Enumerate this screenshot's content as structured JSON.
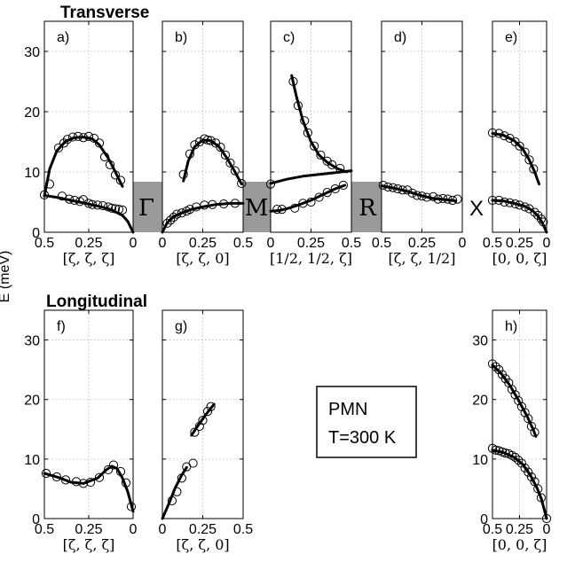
{
  "titles": {
    "transverse": "Transverse",
    "longitudinal": "Longitudinal"
  },
  "ylabel": "E (meV)",
  "yticks": [
    "0",
    "10",
    "20",
    "30"
  ],
  "ylim": [
    0,
    35
  ],
  "symmetry_points": [
    "Γ",
    "M",
    "R",
    "X"
  ],
  "legend_box": {
    "line1": "PMN",
    "line2": "T=300 K"
  },
  "colors": {
    "gray_gap": "#9a9a9a",
    "marks": "#000000"
  },
  "chart_data": [
    {
      "type": "scatter",
      "panel": "a)",
      "row": "top",
      "xlabel": "[ζ, ζ, ζ]",
      "xlim": [
        0.5,
        0
      ],
      "x_reversed": true,
      "xticks": [
        "0.5",
        "0.25",
        "0"
      ],
      "points": [
        [
          0.5,
          6.2
        ],
        [
          0.47,
          8
        ],
        [
          0.42,
          14
        ],
        [
          0.39,
          14.8
        ],
        [
          0.37,
          15.4
        ],
        [
          0.34,
          15.8
        ],
        [
          0.31,
          15.9
        ],
        [
          0.28,
          15.7
        ],
        [
          0.25,
          15.9
        ],
        [
          0.22,
          15.6
        ],
        [
          0.19,
          14.8
        ],
        [
          0.16,
          12.5
        ],
        [
          0.13,
          11.2
        ],
        [
          0.1,
          9.5
        ],
        [
          0.07,
          8.6
        ],
        [
          0.4,
          6
        ],
        [
          0.36,
          5.5
        ],
        [
          0.33,
          5.3
        ],
        [
          0.3,
          5.1
        ],
        [
          0.28,
          5.4
        ],
        [
          0.25,
          4.8
        ],
        [
          0.23,
          4.6
        ],
        [
          0.2,
          4.5
        ],
        [
          0.17,
          4.4
        ],
        [
          0.14,
          4.2
        ],
        [
          0.12,
          4
        ],
        [
          0.1,
          3.9
        ],
        [
          0.08,
          3.8
        ],
        [
          0.06,
          3.7
        ]
      ],
      "curves": [
        [
          [
            0.5,
            6
          ],
          [
            0.47,
            10.5
          ],
          [
            0.43,
            13.5
          ],
          [
            0.38,
            15.1
          ],
          [
            0.33,
            15.7
          ],
          [
            0.28,
            15.8
          ],
          [
            0.23,
            15.5
          ],
          [
            0.19,
            14.5
          ],
          [
            0.14,
            12.3
          ],
          [
            0.1,
            10
          ],
          [
            0.06,
            7.6
          ]
        ],
        [
          [
            0.5,
            6.1
          ],
          [
            0.43,
            5.8
          ],
          [
            0.35,
            5.3
          ],
          [
            0.27,
            4.8
          ],
          [
            0.19,
            4.3
          ],
          [
            0.12,
            3.7
          ],
          [
            0.06,
            2.8
          ],
          [
            0.03,
            1.8
          ],
          [
            0,
            0
          ]
        ]
      ]
    },
    {
      "type": "scatter",
      "panel": "b)",
      "row": "top",
      "xlabel": "[ζ, ζ, 0]",
      "xlim": [
        0,
        0.5
      ],
      "xticks": [
        "0",
        "0.25",
        "0.5"
      ],
      "points": [
        [
          0.13,
          9.6
        ],
        [
          0.17,
          13
        ],
        [
          0.2,
          14.5
        ],
        [
          0.23,
          15
        ],
        [
          0.26,
          15.5
        ],
        [
          0.28,
          15.3
        ],
        [
          0.3,
          15.2
        ],
        [
          0.33,
          14.8
        ],
        [
          0.36,
          14.1
        ],
        [
          0.39,
          12.8
        ],
        [
          0.42,
          11.5
        ],
        [
          0.45,
          10.2
        ],
        [
          0.49,
          8.1
        ],
        [
          0.03,
          1.5
        ],
        [
          0.05,
          2
        ],
        [
          0.07,
          2.5
        ],
        [
          0.09,
          3
        ],
        [
          0.12,
          3.2
        ],
        [
          0.15,
          3.5
        ],
        [
          0.17,
          3.8
        ],
        [
          0.21,
          4.2
        ],
        [
          0.26,
          4.5
        ],
        [
          0.31,
          4.6
        ],
        [
          0.38,
          4.7
        ],
        [
          0.45,
          4.8
        ]
      ],
      "curves": [
        [
          [
            0.13,
            8.5
          ],
          [
            0.16,
            11.8
          ],
          [
            0.2,
            14.2
          ],
          [
            0.25,
            15.3
          ],
          [
            0.3,
            15.2
          ],
          [
            0.35,
            14.2
          ],
          [
            0.4,
            12.3
          ],
          [
            0.45,
            10
          ],
          [
            0.49,
            8
          ]
        ],
        [
          [
            0,
            0
          ],
          [
            0.03,
            1.6
          ],
          [
            0.07,
            2.6
          ],
          [
            0.12,
            3.2
          ],
          [
            0.18,
            3.8
          ],
          [
            0.25,
            4.2
          ],
          [
            0.33,
            4.6
          ],
          [
            0.42,
            4.8
          ],
          [
            0.5,
            4.8
          ]
        ]
      ]
    },
    {
      "type": "scatter",
      "panel": "c)",
      "row": "top",
      "xlabel": "[1/2, 1/2, ζ]",
      "xlim": [
        0,
        0.5
      ],
      "xticks": [
        "0",
        "0.25",
        "0.5"
      ],
      "points": [
        [
          0.14,
          25
        ],
        [
          0.17,
          21
        ],
        [
          0.21,
          18.5
        ],
        [
          0.23,
          16.5
        ],
        [
          0.27,
          14.3
        ],
        [
          0.31,
          12.8
        ],
        [
          0.35,
          11.8
        ],
        [
          0.38,
          11.2
        ],
        [
          0.43,
          10.6
        ],
        [
          0,
          8
        ],
        [
          0.04,
          3.8
        ],
        [
          0.07,
          3.8
        ],
        [
          0.15,
          4
        ],
        [
          0.2,
          4.8
        ],
        [
          0.25,
          5
        ],
        [
          0.3,
          5.8
        ],
        [
          0.35,
          6.6
        ],
        [
          0.4,
          7.2
        ],
        [
          0.45,
          7.8
        ]
      ],
      "curves": [
        [
          [
            0.13,
            26
          ],
          [
            0.16,
            22.5
          ],
          [
            0.2,
            18.5
          ],
          [
            0.25,
            15
          ],
          [
            0.3,
            12.8
          ],
          [
            0.35,
            11.6
          ],
          [
            0.41,
            10.6
          ],
          [
            0.47,
            10
          ]
        ],
        [
          [
            0,
            8.1
          ],
          [
            0.1,
            8.8
          ],
          [
            0.2,
            9.3
          ],
          [
            0.3,
            9.6
          ],
          [
            0.4,
            9.9
          ],
          [
            0.5,
            10.2
          ]
        ],
        [
          [
            0,
            3.5
          ],
          [
            0.05,
            3.6
          ],
          [
            0.1,
            3.9
          ],
          [
            0.17,
            4.5
          ],
          [
            0.25,
            5.3
          ],
          [
            0.32,
            6.2
          ],
          [
            0.4,
            7.2
          ],
          [
            0.46,
            7.8
          ]
        ]
      ]
    },
    {
      "type": "scatter",
      "panel": "d)",
      "row": "top",
      "xlabel": "[ζ, ζ, 1/2]",
      "xlim": [
        0.5,
        0
      ],
      "x_reversed": true,
      "xticks": [
        "0.5",
        "0.25",
        "0"
      ],
      "points": [
        [
          0.49,
          7.8
        ],
        [
          0.46,
          7.5
        ],
        [
          0.43,
          7.4
        ],
        [
          0.4,
          7.2
        ],
        [
          0.37,
          7
        ],
        [
          0.34,
          7
        ],
        [
          0.31,
          6.5
        ],
        [
          0.28,
          6.1
        ],
        [
          0.25,
          6
        ],
        [
          0.22,
          5.8
        ],
        [
          0.18,
          5.9
        ],
        [
          0.15,
          5.5
        ],
        [
          0.12,
          5.6
        ],
        [
          0.09,
          5.5
        ],
        [
          0.06,
          5.3
        ],
        [
          0.03,
          5.5
        ]
      ],
      "curves": [
        [
          [
            0.5,
            7.7
          ],
          [
            0.42,
            7.3
          ],
          [
            0.34,
            6.8
          ],
          [
            0.26,
            6.1
          ],
          [
            0.18,
            5.6
          ],
          [
            0.1,
            5.4
          ],
          [
            0.04,
            5.2
          ]
        ]
      ]
    },
    {
      "type": "scatter",
      "panel": "e)",
      "row": "top",
      "xlabel": "[0, 0, ζ]",
      "xlim": [
        0.5,
        0
      ],
      "x_reversed": true,
      "xticks": [
        "0.5",
        "0.25",
        "0"
      ],
      "points": [
        [
          0.5,
          16.5
        ],
        [
          0.44,
          16.4
        ],
        [
          0.39,
          16
        ],
        [
          0.34,
          15.6
        ],
        [
          0.29,
          15
        ],
        [
          0.25,
          14.3
        ],
        [
          0.2,
          13.3
        ],
        [
          0.16,
          12
        ],
        [
          0.12,
          10.5
        ],
        [
          0.5,
          5.3
        ],
        [
          0.44,
          5.3
        ],
        [
          0.39,
          5
        ],
        [
          0.34,
          4.9
        ],
        [
          0.29,
          4.7
        ],
        [
          0.25,
          4.5
        ],
        [
          0.2,
          4.2
        ],
        [
          0.16,
          3.9
        ],
        [
          0.11,
          3.3
        ],
        [
          0.08,
          2.8
        ],
        [
          0.05,
          2.2
        ],
        [
          0.03,
          1.7
        ]
      ],
      "curves": [
        [
          [
            0.5,
            16.4
          ],
          [
            0.4,
            16.1
          ],
          [
            0.3,
            15.2
          ],
          [
            0.22,
            13.8
          ],
          [
            0.16,
            12
          ],
          [
            0.11,
            10
          ],
          [
            0.07,
            8
          ]
        ],
        [
          [
            0.5,
            5.3
          ],
          [
            0.4,
            5.2
          ],
          [
            0.3,
            4.8
          ],
          [
            0.2,
            4.3
          ],
          [
            0.13,
            3.6
          ],
          [
            0.08,
            2.7
          ],
          [
            0.04,
            1.6
          ],
          [
            0,
            0
          ]
        ]
      ]
    },
    {
      "type": "scatter",
      "panel": "f)",
      "row": "bottom",
      "xlabel": "[ζ, ζ, ζ]",
      "xlim": [
        0.5,
        0
      ],
      "x_reversed": true,
      "xticks": [
        "0.5",
        "0.25",
        "0"
      ],
      "points": [
        [
          0.49,
          7.6
        ],
        [
          0.43,
          7
        ],
        [
          0.38,
          6.5
        ],
        [
          0.32,
          6.2
        ],
        [
          0.28,
          5.9
        ],
        [
          0.24,
          6.1
        ],
        [
          0.19,
          6.9
        ],
        [
          0.14,
          8.2
        ],
        [
          0.11,
          9
        ],
        [
          0.07,
          7.9
        ],
        [
          0.04,
          6
        ],
        [
          0.01,
          2
        ]
      ],
      "curves": [
        [
          [
            0.5,
            7.6
          ],
          [
            0.42,
            6.9
          ],
          [
            0.35,
            6.1
          ],
          [
            0.28,
            5.9
          ],
          [
            0.2,
            6.8
          ],
          [
            0.15,
            8.2
          ],
          [
            0.12,
            8.8
          ],
          [
            0.09,
            8.4
          ],
          [
            0.06,
            6.8
          ],
          [
            0.03,
            4.5
          ],
          [
            0,
            1.2
          ]
        ]
      ]
    },
    {
      "type": "scatter",
      "panel": "g)",
      "row": "bottom",
      "xlabel": "[ζ, ζ, 0]",
      "xlim": [
        0,
        0.5
      ],
      "xticks": [
        "0",
        "0.25",
        "0.5"
      ],
      "points": [
        [
          0.06,
          3
        ],
        [
          0.09,
          4.5
        ],
        [
          0.12,
          6.8
        ],
        [
          0.15,
          8.7
        ],
        [
          0.19,
          9.3
        ],
        [
          0.2,
          14.5
        ],
        [
          0.23,
          15.5
        ],
        [
          0.25,
          16.5
        ],
        [
          0.28,
          18
        ],
        [
          0.3,
          18.8
        ]
      ],
      "curves": [
        [
          [
            0,
            0
          ],
          [
            0.04,
            2.5
          ],
          [
            0.08,
            5.2
          ],
          [
            0.12,
            7.3
          ],
          [
            0.15,
            8.6
          ]
        ],
        [
          [
            0.18,
            14
          ],
          [
            0.22,
            15.6
          ],
          [
            0.27,
            17.5
          ],
          [
            0.32,
            19.2
          ]
        ]
      ]
    },
    {
      "type": "scatter",
      "panel": "h)",
      "row": "bottom",
      "xlabel": "[0, 0, ζ]",
      "xlim": [
        0.5,
        0
      ],
      "x_reversed": true,
      "xticks": [
        "0.5",
        "0.25",
        "0"
      ],
      "points": [
        [
          0.5,
          26
        ],
        [
          0.47,
          25.5
        ],
        [
          0.44,
          25
        ],
        [
          0.41,
          24.2
        ],
        [
          0.38,
          23.5
        ],
        [
          0.35,
          22.8
        ],
        [
          0.32,
          21.7
        ],
        [
          0.29,
          20.8
        ],
        [
          0.26,
          19.8
        ],
        [
          0.23,
          18.8
        ],
        [
          0.2,
          17.8
        ],
        [
          0.17,
          16.8
        ],
        [
          0.14,
          15.5
        ],
        [
          0.11,
          14.5
        ],
        [
          0.5,
          11.8
        ],
        [
          0.47,
          11.5
        ],
        [
          0.44,
          11.4
        ],
        [
          0.41,
          11.2
        ],
        [
          0.38,
          11
        ],
        [
          0.35,
          10.9
        ],
        [
          0.32,
          10.6
        ],
        [
          0.29,
          10.3
        ],
        [
          0.26,
          9.8
        ],
        [
          0.23,
          9.3
        ],
        [
          0.2,
          8.5
        ],
        [
          0.17,
          7.8
        ],
        [
          0.14,
          7
        ],
        [
          0.11,
          6.2
        ],
        [
          0.08,
          5
        ],
        [
          0.05,
          3.5
        ],
        [
          0,
          0
        ]
      ],
      "curves": [
        [
          [
            0.5,
            25.8
          ],
          [
            0.42,
            24.4
          ],
          [
            0.34,
            22.4
          ],
          [
            0.26,
            19.9
          ],
          [
            0.18,
            17.2
          ],
          [
            0.12,
            14.8
          ],
          [
            0.1,
            13.8
          ]
        ],
        [
          [
            0.5,
            11.5
          ],
          [
            0.4,
            11.1
          ],
          [
            0.3,
            10.3
          ],
          [
            0.22,
            9.1
          ],
          [
            0.15,
            7.3
          ],
          [
            0.09,
            5.2
          ],
          [
            0.05,
            3.4
          ],
          [
            0.02,
            1.4
          ],
          [
            0,
            0
          ]
        ]
      ]
    }
  ]
}
